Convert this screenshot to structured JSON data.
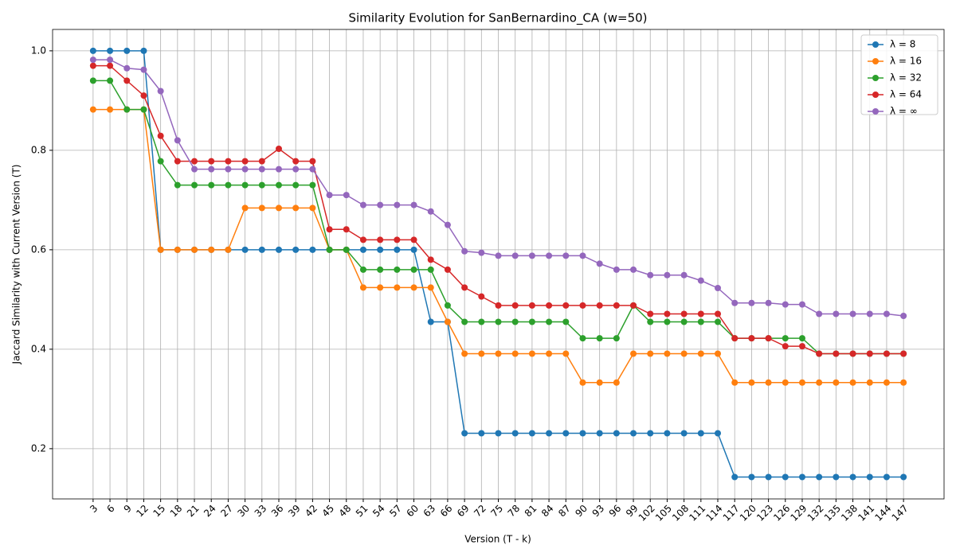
{
  "chart_data": {
    "type": "line",
    "title": "Similarity Evolution for SanBernardino_CA (w=50)",
    "x_label": "Version (T - k)",
    "y_label": "Jaccard Similarity with Current Version (T)",
    "x": [
      3,
      6,
      9,
      12,
      15,
      18,
      21,
      24,
      27,
      30,
      33,
      36,
      39,
      42,
      45,
      48,
      51,
      54,
      57,
      60,
      63,
      66,
      69,
      72,
      75,
      78,
      81,
      84,
      87,
      90,
      93,
      96,
      99,
      102,
      105,
      108,
      111,
      114,
      117,
      120,
      123,
      126,
      129,
      132,
      135,
      138,
      141,
      144,
      147
    ],
    "xlim": [
      -4.2,
      154.2
    ],
    "xticks": [
      3,
      6,
      9,
      12,
      15,
      18,
      21,
      24,
      27,
      30,
      33,
      36,
      39,
      42,
      45,
      48,
      51,
      54,
      57,
      60,
      63,
      66,
      69,
      72,
      75,
      78,
      81,
      84,
      87,
      90,
      93,
      96,
      99,
      102,
      105,
      108,
      111,
      114,
      117,
      120,
      123,
      126,
      129,
      132,
      135,
      138,
      141,
      144,
      147
    ],
    "ylim": [
      0.099,
      1.043
    ],
    "yticks": [
      0.2,
      0.4,
      0.6,
      0.8,
      {
        "value": 1,
        "label": "1.0"
      }
    ],
    "grid": true,
    "legend": "upper right",
    "series": [
      {
        "name": "λ = 8",
        "color": "#1f77b4",
        "values": [
          1,
          1,
          1,
          1,
          0.6,
          0.6,
          0.6,
          0.6,
          0.6,
          0.6,
          0.6,
          0.6,
          0.6,
          0.6,
          0.6,
          0.6,
          0.6,
          0.6,
          0.6,
          0.6,
          0.455,
          0.455,
          0.231,
          0.231,
          0.231,
          0.231,
          0.231,
          0.231,
          0.231,
          0.231,
          0.231,
          0.231,
          0.231,
          0.231,
          0.231,
          0.231,
          0.231,
          0.231,
          0.143,
          0.143,
          0.143,
          0.143,
          0.143,
          0.143,
          0.143,
          0.143,
          0.143,
          0.143,
          0.143
        ]
      },
      {
        "name": "λ = 16",
        "color": "#ff7f0e",
        "values": [
          0.882,
          0.882,
          0.882,
          0.882,
          0.6,
          0.6,
          0.6,
          0.6,
          0.6,
          0.684,
          0.684,
          0.684,
          0.684,
          0.684,
          0.6,
          0.6,
          0.524,
          0.524,
          0.524,
          0.524,
          0.524,
          0.455,
          0.391,
          0.391,
          0.391,
          0.391,
          0.391,
          0.391,
          0.391,
          0.333,
          0.333,
          0.333,
          0.391,
          0.391,
          0.391,
          0.391,
          0.391,
          0.391,
          0.333,
          0.333,
          0.333,
          0.333,
          0.333,
          0.333,
          0.333,
          0.333,
          0.333,
          0.333,
          0.333
        ]
      },
      {
        "name": "λ = 32",
        "color": "#2ca02c",
        "values": [
          0.94,
          0.94,
          0.882,
          0.882,
          0.778,
          0.73,
          0.73,
          0.73,
          0.73,
          0.73,
          0.73,
          0.73,
          0.73,
          0.73,
          0.6,
          0.6,
          0.56,
          0.56,
          0.56,
          0.56,
          0.56,
          0.488,
          0.455,
          0.455,
          0.455,
          0.455,
          0.455,
          0.455,
          0.455,
          0.422,
          0.422,
          0.422,
          0.488,
          0.455,
          0.455,
          0.455,
          0.455,
          0.455,
          0.422,
          0.422,
          0.422,
          0.422,
          0.422,
          0.391,
          0.391,
          0.391,
          0.391,
          0.391,
          0.391
        ]
      },
      {
        "name": "λ = 64",
        "color": "#d62728",
        "values": [
          0.97,
          0.97,
          0.94,
          0.91,
          0.829,
          0.778,
          0.778,
          0.778,
          0.778,
          0.778,
          0.778,
          0.803,
          0.778,
          0.778,
          0.641,
          0.641,
          0.62,
          0.62,
          0.62,
          0.62,
          0.58,
          0.56,
          0.524,
          0.506,
          0.488,
          0.488,
          0.488,
          0.488,
          0.488,
          0.488,
          0.488,
          0.488,
          0.488,
          0.471,
          0.471,
          0.471,
          0.471,
          0.471,
          0.422,
          0.422,
          0.422,
          0.406,
          0.406,
          0.391,
          0.391,
          0.391,
          0.391,
          0.391,
          0.391
        ]
      },
      {
        "name": "λ = ∞",
        "color": "#9467bd",
        "values": [
          0.982,
          0.982,
          0.965,
          0.962,
          0.919,
          0.82,
          0.762,
          0.762,
          0.762,
          0.762,
          0.762,
          0.762,
          0.762,
          0.762,
          0.71,
          0.71,
          0.69,
          0.69,
          0.69,
          0.69,
          0.677,
          0.65,
          0.597,
          0.594,
          0.588,
          0.588,
          0.588,
          0.588,
          0.588,
          0.588,
          0.572,
          0.56,
          0.56,
          0.549,
          0.549,
          0.549,
          0.538,
          0.523,
          0.493,
          0.493,
          0.493,
          0.49,
          0.49,
          0.471,
          0.471,
          0.471,
          0.471,
          0.471,
          0.467
        ]
      }
    ]
  }
}
